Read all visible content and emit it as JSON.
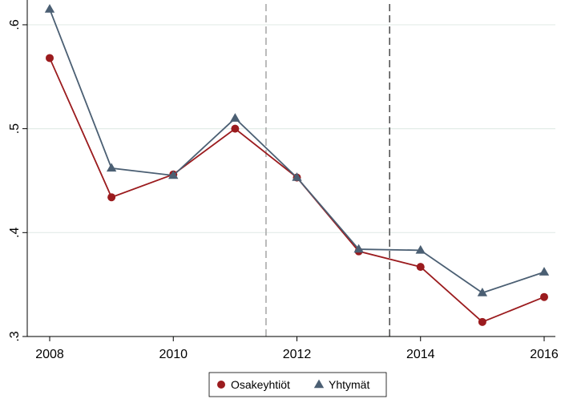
{
  "chart_data": {
    "type": "line",
    "title": "",
    "xlabel": "",
    "ylabel": "",
    "x": [
      2008,
      2009,
      2010,
      2011,
      2012,
      2013,
      2014,
      2015,
      2016
    ],
    "xlim": [
      2008,
      2016
    ],
    "ylim": [
      0.3,
      0.62
    ],
    "x_ticks": [
      {
        "value": 2008,
        "label": "2008"
      },
      {
        "value": 2010,
        "label": "2010"
      },
      {
        "value": 2012,
        "label": "2012"
      },
      {
        "value": 2014,
        "label": "2014"
      },
      {
        "value": 2016,
        "label": "2016"
      }
    ],
    "y_ticks": [
      {
        "value": 0.3,
        "label": ".3"
      },
      {
        "value": 0.4,
        "label": ".4"
      },
      {
        "value": 0.5,
        "label": ".5"
      },
      {
        "value": 0.6,
        "label": ".6"
      }
    ],
    "grid": true,
    "vertical_lines": [
      {
        "x": 2011.5,
        "color": "#aaaaaa",
        "style": "dashed"
      },
      {
        "x": 2013.5,
        "color": "#555555",
        "style": "dashed"
      }
    ],
    "series": [
      {
        "name": "Osakeyhtiöt",
        "color": "#9b1b1e",
        "marker": "circle",
        "values": [
          0.568,
          0.434,
          0.456,
          0.5,
          0.453,
          0.382,
          0.367,
          0.314,
          0.338
        ]
      },
      {
        "name": "Yhtymät",
        "color": "#4b5f73",
        "marker": "triangle",
        "values": [
          0.615,
          0.462,
          0.455,
          0.51,
          0.453,
          0.384,
          0.383,
          0.342,
          0.362
        ]
      }
    ],
    "legend": {
      "position": "bottom-center",
      "entries": [
        "Osakeyhtiöt",
        "Yhtymät"
      ]
    }
  }
}
